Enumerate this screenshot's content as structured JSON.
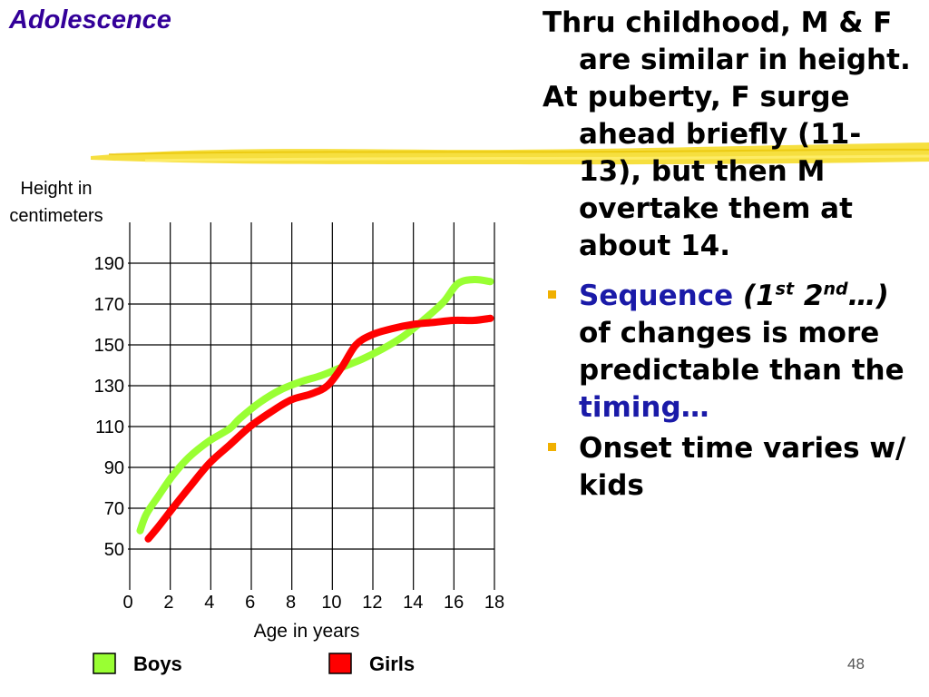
{
  "slide": {
    "title": "Adolescence",
    "number": "48",
    "text": {
      "para1": "Thru childhood, M & F are similar in height.",
      "para2": "At puberty, F surge ahead briefly (11-13), but then M overtake them at about 14.",
      "bullet1": {
        "word1": "Sequence",
        "p_open": "(1",
        "sup1": "st",
        "num2": "2",
        "sup2": "nd",
        "p_close": "…)",
        "mid": "of changes is more predictable than the",
        "word2": "timing…"
      },
      "bullet2": "Onset time varies w/ kids"
    },
    "colors": {
      "title": "#330099",
      "highlight_text": "#1a1aa8",
      "bullet": "#f0b000",
      "brush": "#f5dc2a"
    }
  },
  "chart_data": {
    "type": "line",
    "title": "",
    "ylabel_lines": [
      "Height in",
      "centimeters"
    ],
    "xlabel": "Age in years",
    "xlim": [
      0,
      18
    ],
    "ylim": [
      30,
      210
    ],
    "y_ticks": [
      50,
      70,
      90,
      110,
      130,
      150,
      170,
      190
    ],
    "x_tick_labels": [
      "0",
      "2",
      "4",
      "6",
      "8",
      "10",
      "12",
      "14",
      "16",
      "18"
    ],
    "x_tick_values": [
      0,
      2,
      4,
      6,
      8,
      10,
      12,
      14,
      16,
      18
    ],
    "grid": true,
    "legend_position": "bottom",
    "series": [
      {
        "name": "Boys",
        "color": "#99ff33",
        "x": [
          0.6,
          0.9,
          1.5,
          2.2,
          3.0,
          4.0,
          5.0,
          5.5,
          6.5,
          7.5,
          8.5,
          9.5,
          10.5,
          11.5,
          12.5,
          13.5,
          14.5,
          15.5,
          16.2,
          17.0,
          17.8
        ],
        "y": [
          59,
          67,
          76,
          86,
          95,
          103,
          109,
          114,
          122,
          128,
          132,
          135,
          139,
          143,
          148,
          154,
          162,
          171,
          180,
          182,
          181
        ]
      },
      {
        "name": "Girls",
        "color": "#ff0000",
        "x": [
          1.0,
          1.5,
          2.2,
          3.0,
          4.0,
          5.0,
          6.0,
          7.0,
          8.0,
          9.0,
          9.8,
          10.5,
          11.2,
          12.0,
          13.0,
          14.0,
          15.0,
          16.0,
          17.0,
          17.8
        ],
        "y": [
          55,
          61,
          70,
          80,
          92,
          101,
          110,
          117,
          123,
          126,
          130,
          139,
          150,
          155,
          158,
          160,
          161,
          162,
          162,
          163
        ]
      }
    ]
  }
}
